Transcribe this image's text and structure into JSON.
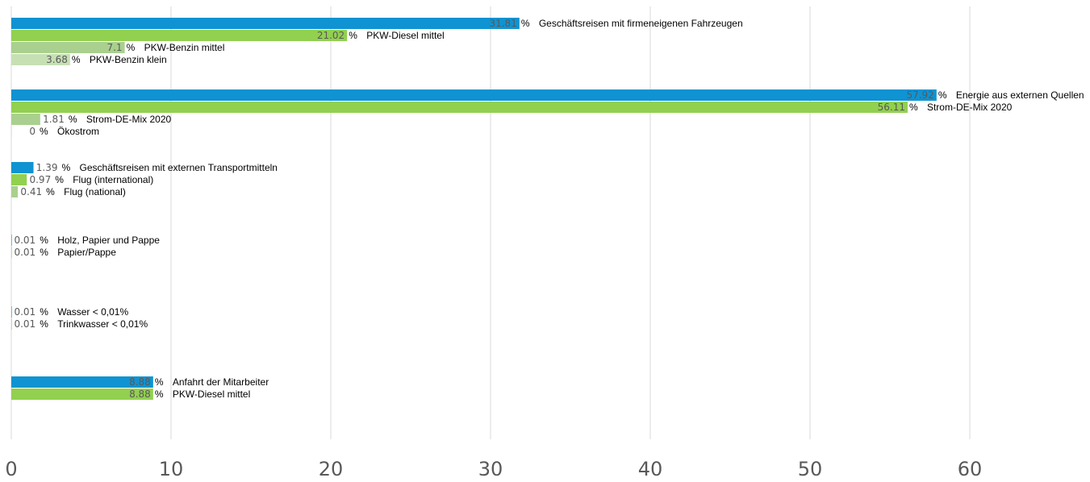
{
  "chart_data": {
    "type": "bar",
    "orientation": "horizontal",
    "xlim": [
      0,
      60
    ],
    "x_ticks": [
      "0",
      "10",
      "20",
      "30",
      "40",
      "50",
      "60"
    ],
    "grid": true,
    "unit_label": "%",
    "colors": {
      "category": "#0f93d2",
      "sub_primary": "#92d050",
      "sub_secondary": "#a9d08e",
      "sub_tertiary": "#c6e0b4",
      "grid": "#d9d9d9"
    },
    "groups": [
      {
        "bars": [
          {
            "label": "Geschäftsreisen mit firmeneigenen Fahrzeugen",
            "value": 31.81,
            "value_text": "31.81",
            "level": "category"
          },
          {
            "label": "PKW-Diesel mittel",
            "value": 21.02,
            "value_text": "21.02",
            "level": "sub_primary"
          },
          {
            "label": "PKW-Benzin mittel",
            "value": 7.1,
            "value_text": "7.1",
            "level": "sub_secondary"
          },
          {
            "label": "PKW-Benzin klein",
            "value": 3.68,
            "value_text": "3.68",
            "level": "sub_tertiary"
          }
        ]
      },
      {
        "bars": [
          {
            "label": "Energie aus externen Quellen",
            "value": 57.92,
            "value_text": "57.92",
            "level": "category"
          },
          {
            "label": "Strom-DE-Mix 2020",
            "value": 56.11,
            "value_text": "56.11",
            "level": "sub_primary"
          },
          {
            "label": "Strom-DE-Mix 2020",
            "value": 1.81,
            "value_text": "1.81",
            "level": "sub_secondary"
          },
          {
            "label": "Ökostrom",
            "value": 0,
            "value_text": "0",
            "level": "sub_tertiary"
          }
        ]
      },
      {
        "bars": [
          {
            "label": "Geschäftsreisen mit externen Transportmitteln",
            "value": 1.39,
            "value_text": "1.39",
            "level": "category"
          },
          {
            "label": "Flug (international)",
            "value": 0.97,
            "value_text": "0.97",
            "level": "sub_primary"
          },
          {
            "label": "Flug (national)",
            "value": 0.41,
            "value_text": "0.41",
            "level": "sub_secondary"
          }
        ]
      },
      {
        "bars": [
          {
            "label": "Holz, Papier und Pappe",
            "value": 0.01,
            "value_text": "0.01",
            "level": "category"
          },
          {
            "label": "Papier/Pappe",
            "value": 0.01,
            "value_text": "0.01",
            "level": "sub_primary"
          }
        ]
      },
      {
        "bars": [
          {
            "label": "Wasser < 0,01%",
            "value": 0.01,
            "value_text": "0.01",
            "level": "category"
          },
          {
            "label": "Trinkwasser < 0,01%",
            "value": 0.01,
            "value_text": "0.01",
            "level": "sub_primary"
          }
        ]
      },
      {
        "bars": [
          {
            "label": "Anfahrt der Mitarbeiter",
            "value": 8.88,
            "value_text": "8.88",
            "level": "category"
          },
          {
            "label": "PKW-Diesel mittel",
            "value": 8.88,
            "value_text": "8.88",
            "level": "sub_primary"
          }
        ]
      }
    ]
  }
}
